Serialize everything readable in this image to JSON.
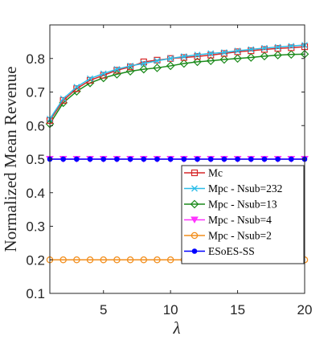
{
  "chart_data": {
    "type": "line",
    "title": "",
    "xlabel": "λ",
    "ylabel": "Normalized Mean Revenue",
    "xlim": [
      1,
      20
    ],
    "ylim": [
      0.1,
      0.9
    ],
    "xticks": [
      5,
      10,
      15,
      20
    ],
    "yticks": [
      0.1,
      0.2,
      0.3,
      0.4,
      0.5,
      0.6,
      0.7,
      0.8
    ],
    "grid": false,
    "legend_position": "lower-right",
    "x": [
      1,
      2,
      3,
      4,
      5,
      6,
      7,
      8,
      9,
      10,
      11,
      12,
      13,
      14,
      15,
      16,
      17,
      18,
      19,
      20
    ],
    "series": [
      {
        "name": "Mc",
        "color": "#d62728",
        "marker": "square",
        "values": [
          0.615,
          0.675,
          0.71,
          0.735,
          0.75,
          0.765,
          0.775,
          0.79,
          0.795,
          0.8,
          0.803,
          0.806,
          0.81,
          0.815,
          0.82,
          0.823,
          0.827,
          0.83,
          0.832,
          0.835
        ]
      },
      {
        "name": "Mpc - Nsub=232",
        "color": "#2dbde8",
        "marker": "x",
        "values": [
          0.62,
          0.68,
          0.715,
          0.74,
          0.755,
          0.768,
          0.778,
          0.785,
          0.793,
          0.8,
          0.806,
          0.811,
          0.815,
          0.818,
          0.823,
          0.827,
          0.831,
          0.834,
          0.837,
          0.84
        ]
      },
      {
        "name": "Mpc - Nsub=13",
        "color": "#1a8a1a",
        "marker": "diamond",
        "values": [
          0.605,
          0.668,
          0.702,
          0.727,
          0.742,
          0.753,
          0.762,
          0.768,
          0.772,
          0.778,
          0.785,
          0.79,
          0.793,
          0.797,
          0.8,
          0.803,
          0.807,
          0.81,
          0.812,
          0.813
        ]
      },
      {
        "name": "Mpc - Nsub=4",
        "color": "#ff33ff",
        "marker": "triangle-down",
        "values": [
          0.5,
          0.5,
          0.5,
          0.5,
          0.5,
          0.5,
          0.5,
          0.5,
          0.5,
          0.5,
          0.5,
          0.5,
          0.5,
          0.5,
          0.5,
          0.5,
          0.5,
          0.5,
          0.5,
          0.5
        ]
      },
      {
        "name": "Mpc - Nsub=2",
        "color": "#f28e1c",
        "marker": "circle-open",
        "values": [
          0.2,
          0.2,
          0.2,
          0.2,
          0.2,
          0.2,
          0.2,
          0.2,
          0.2,
          0.2,
          0.2,
          0.2,
          0.2,
          0.2,
          0.2,
          0.2,
          0.2,
          0.2,
          0.2,
          0.2
        ]
      },
      {
        "name": "ESoES-SS",
        "color": "#0000ff",
        "marker": "dot",
        "values": [
          0.5,
          0.5,
          0.5,
          0.5,
          0.5,
          0.5,
          0.5,
          0.5,
          0.5,
          0.5,
          0.5,
          0.5,
          0.5,
          0.5,
          0.5,
          0.5,
          0.5,
          0.5,
          0.5,
          0.5
        ]
      }
    ]
  }
}
